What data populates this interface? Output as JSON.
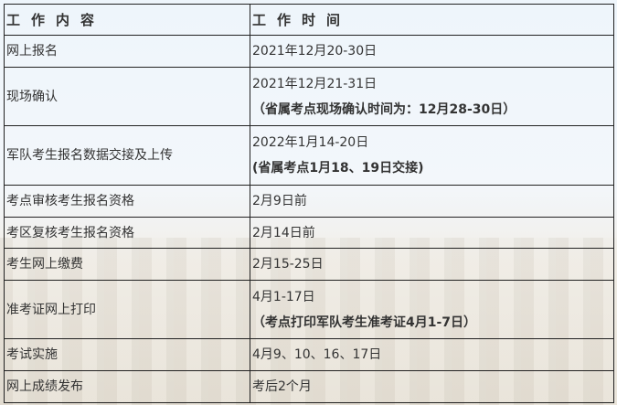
{
  "header": {
    "col1": "工作内容",
    "col2": "工作时间"
  },
  "rows": [
    {
      "task": "网上报名",
      "time": "2021年12月20-30日",
      "note": ""
    },
    {
      "task": "现场确认",
      "time": "2021年12月21-31日",
      "note": "（省属考点现场确认时间为：12月28-30日）"
    },
    {
      "task": "军队考生报名数据交接及上传",
      "time": "2022年1月14-20日",
      "note": "(省属考点1月18、19日交接)"
    },
    {
      "task": "考点审核考生报名资格",
      "time": "2月9日前",
      "note": ""
    },
    {
      "task": "考区复核考生报名资格",
      "time": "2月14日前",
      "note": ""
    },
    {
      "task": "考生网上缴费",
      "time": "2月15-25日",
      "note": ""
    },
    {
      "task": "准考证网上打印",
      "time": "4月1-17日",
      "note": "（考点打印军队考生准考证4月1-7日）"
    },
    {
      "task": "考试实施",
      "time": "4月9、10、16、17日",
      "note": ""
    },
    {
      "task": "网上成绩发布",
      "time": "考后2个月",
      "note": ""
    }
  ]
}
